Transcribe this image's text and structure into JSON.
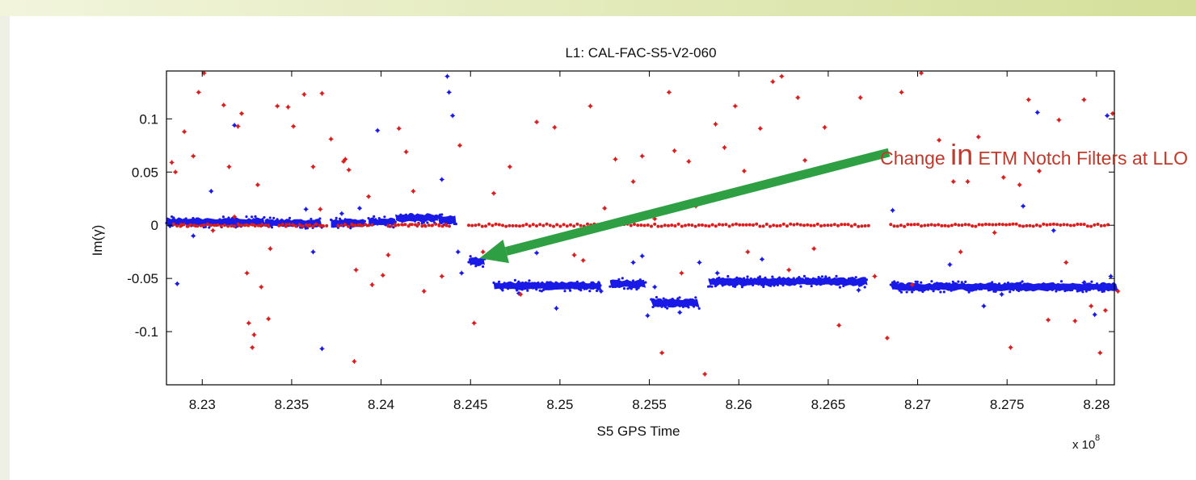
{
  "chart_data": {
    "type": "scatter",
    "title": "L1: CAL-FAC-S5-V2-060",
    "xlabel": "S5 GPS Time",
    "ylabel": "Im(γ)",
    "x_multiplier_label": "x 10",
    "x_multiplier_exponent": "8",
    "xlim": [
      8.228,
      8.281
    ],
    "ylim": [
      -0.15,
      0.145
    ],
    "xticks": [
      8.23,
      8.235,
      8.24,
      8.245,
      8.25,
      8.255,
      8.26,
      8.265,
      8.27,
      8.275,
      8.28
    ],
    "xtick_labels": [
      "8.23",
      "8.235",
      "8.24",
      "8.245",
      "8.25",
      "8.255",
      "8.26",
      "8.265",
      "8.27",
      "8.275",
      "8.28"
    ],
    "yticks": [
      0.1,
      0.05,
      0,
      -0.05,
      -0.1
    ],
    "ytick_labels": [
      "0.1",
      "0.05",
      "0",
      "-0.05",
      "-0.1"
    ],
    "grid": false,
    "series": [
      {
        "color": "#1a1ae6",
        "bands": [
          [
            8.228,
            8.2335,
            0.003
          ],
          [
            8.2335,
            8.2367,
            0.002
          ],
          [
            8.2372,
            8.2391,
            0.002
          ],
          [
            8.2393,
            8.2408,
            0.003
          ],
          [
            8.2408,
            8.2432,
            0.007
          ],
          [
            8.2432,
            8.2442,
            0.005
          ],
          [
            8.2449,
            8.2458,
            -0.034
          ],
          [
            8.2463,
            8.2523,
            -0.057
          ],
          [
            8.2528,
            8.2548,
            -0.055
          ],
          [
            8.2551,
            8.2578,
            -0.073
          ],
          [
            8.2583,
            8.2672,
            -0.053
          ],
          [
            8.2685,
            8.2812,
            -0.058
          ]
        ],
        "outliers": [
          [
            8.2286,
            -0.055
          ],
          [
            8.2295,
            -0.01
          ],
          [
            8.2305,
            0.032
          ],
          [
            8.2318,
            0.094
          ],
          [
            8.2358,
            0.015
          ],
          [
            8.2362,
            -0.025
          ],
          [
            8.2367,
            -0.116
          ],
          [
            8.2378,
            0.011
          ],
          [
            8.2388,
            0.016
          ],
          [
            8.2398,
            0.089
          ],
          [
            8.2434,
            0.043
          ],
          [
            8.2437,
            0.14
          ],
          [
            8.2438,
            0.125
          ],
          [
            8.244,
            0.103
          ],
          [
            8.2443,
            -0.025
          ],
          [
            8.2445,
            -0.045
          ],
          [
            8.2477,
            -0.064
          ],
          [
            8.2487,
            -0.026
          ],
          [
            8.2498,
            -0.078
          ],
          [
            8.2523,
            -0.062
          ],
          [
            8.2541,
            -0.035
          ],
          [
            8.2546,
            -0.029
          ],
          [
            8.2549,
            -0.085
          ],
          [
            8.2553,
            -0.058
          ],
          [
            8.2567,
            -0.082
          ],
          [
            8.2578,
            -0.035
          ],
          [
            8.2588,
            -0.045
          ],
          [
            8.2613,
            -0.032
          ],
          [
            8.2667,
            -0.061
          ],
          [
            8.2686,
            0.014
          ],
          [
            8.2718,
            -0.037
          ],
          [
            8.2737,
            -0.076
          ],
          [
            8.2747,
            -0.065
          ],
          [
            8.2759,
            0.018
          ],
          [
            8.2767,
            0.106
          ],
          [
            8.2776,
            -0.005
          ],
          [
            8.2793,
            -0.054
          ],
          [
            8.2799,
            -0.084
          ],
          [
            8.2806,
            0.103
          ],
          [
            8.2808,
            -0.048
          ]
        ]
      },
      {
        "color": "#d81e1e",
        "bands": [
          [
            8.2284,
            8.2338,
            0.0
          ],
          [
            8.2343,
            8.237,
            0.0
          ],
          [
            8.2376,
            8.2395,
            0.0
          ],
          [
            8.2404,
            8.244,
            0.0
          ],
          [
            8.2449,
            8.253,
            0.0
          ],
          [
            8.2534,
            8.2673,
            0.0
          ],
          [
            8.2685,
            8.2808,
            0.0
          ]
        ],
        "outliers": [
          [
            8.2283,
            0.059
          ],
          [
            8.2285,
            0.05
          ],
          [
            8.229,
            0.088
          ],
          [
            8.2295,
            0.065
          ],
          [
            8.2298,
            0.125
          ],
          [
            8.2301,
            0.143
          ],
          [
            8.2306,
            -0.005
          ],
          [
            8.2312,
            0.113
          ],
          [
            8.2315,
            0.055
          ],
          [
            8.2318,
            0.008
          ],
          [
            8.232,
            0.093
          ],
          [
            8.2322,
            0.105
          ],
          [
            8.2325,
            -0.045
          ],
          [
            8.2326,
            -0.092
          ],
          [
            8.2328,
            -0.115
          ],
          [
            8.2329,
            -0.103
          ],
          [
            8.2331,
            0.038
          ],
          [
            8.2333,
            -0.058
          ],
          [
            8.2337,
            -0.088
          ],
          [
            8.2338,
            -0.022
          ],
          [
            8.2342,
            0.112
          ],
          [
            8.2348,
            0.111
          ],
          [
            8.2351,
            0.093
          ],
          [
            8.2357,
            0.123
          ],
          [
            8.2362,
            0.055
          ],
          [
            8.2366,
            0.015
          ],
          [
            8.2367,
            0.124
          ],
          [
            8.2372,
            0.081
          ],
          [
            8.2379,
            0.06
          ],
          [
            8.238,
            0.062
          ],
          [
            8.2382,
            0.052
          ],
          [
            8.2385,
            -0.128
          ],
          [
            8.2386,
            -0.042
          ],
          [
            8.2393,
            0.027
          ],
          [
            8.2395,
            -0.056
          ],
          [
            8.2401,
            -0.047
          ],
          [
            8.2404,
            -0.028
          ],
          [
            8.241,
            0.091
          ],
          [
            8.2414,
            0.069
          ],
          [
            8.2418,
            0.032
          ],
          [
            8.2424,
            -0.062
          ],
          [
            8.2434,
            -0.048
          ],
          [
            8.2444,
            0.075
          ],
          [
            8.2452,
            -0.092
          ],
          [
            8.2457,
            -0.025
          ],
          [
            8.2463,
            0.03
          ],
          [
            8.2472,
            0.055
          ],
          [
            8.2478,
            -0.065
          ],
          [
            8.2487,
            0.097
          ],
          [
            8.2497,
            0.092
          ],
          [
            8.2508,
            -0.028
          ],
          [
            8.2513,
            -0.033
          ],
          [
            8.2517,
            0.112
          ],
          [
            8.2525,
            0.016
          ],
          [
            8.2531,
            0.062
          ],
          [
            8.2541,
            0.041
          ],
          [
            8.2546,
            0.065
          ],
          [
            8.2553,
            0.006
          ],
          [
            8.2557,
            -0.12
          ],
          [
            8.2561,
            0.125
          ],
          [
            8.2564,
            0.07
          ],
          [
            8.2568,
            -0.045
          ],
          [
            8.2572,
            0.06
          ],
          [
            8.2576,
            0.018
          ],
          [
            8.2581,
            -0.14
          ],
          [
            8.2587,
            0.095
          ],
          [
            8.2592,
            0.073
          ],
          [
            8.2598,
            0.112
          ],
          [
            8.2603,
            0.051
          ],
          [
            8.2605,
            -0.025
          ],
          [
            8.2612,
            0.091
          ],
          [
            8.2619,
            0.135
          ],
          [
            8.2624,
            0.14
          ],
          [
            8.2628,
            -0.042
          ],
          [
            8.2633,
            0.12
          ],
          [
            8.2637,
            0.061
          ],
          [
            8.2642,
            -0.022
          ],
          [
            8.2648,
            0.092
          ],
          [
            8.2656,
            -0.094
          ],
          [
            8.2668,
            0.12
          ],
          [
            8.2676,
            -0.048
          ],
          [
            8.2683,
            -0.106
          ],
          [
            8.2691,
            0.125
          ],
          [
            8.2697,
            -0.056
          ],
          [
            8.2702,
            0.143
          ],
          [
            8.2712,
            0.08
          ],
          [
            8.272,
            0.041
          ],
          [
            8.2724,
            -0.025
          ],
          [
            8.2728,
            0.041
          ],
          [
            8.2734,
            0.083
          ],
          [
            8.2743,
            -0.007
          ],
          [
            8.2748,
            0.045
          ],
          [
            8.2752,
            -0.115
          ],
          [
            8.2757,
            0.038
          ],
          [
            8.2762,
            0.118
          ],
          [
            8.2768,
            0.051
          ],
          [
            8.2773,
            -0.089
          ],
          [
            8.2779,
            0.099
          ],
          [
            8.2783,
            -0.035
          ],
          [
            8.2788,
            -0.09
          ],
          [
            8.2793,
            0.118
          ],
          [
            8.2797,
            -0.076
          ],
          [
            8.2802,
            -0.12
          ],
          [
            8.2805,
            -0.08
          ],
          [
            8.2809,
            0.105
          ],
          [
            8.2812,
            -0.062
          ]
        ]
      }
    ],
    "annotations": [
      {
        "text_before": "Change ",
        "text_big": "in",
        "text_after": " ETM Notch Filters at LLO",
        "color": "#c0392b",
        "arrow_color": "#2ea043",
        "arrow_tip": [
          8.2455,
          -0.031
        ]
      }
    ]
  }
}
